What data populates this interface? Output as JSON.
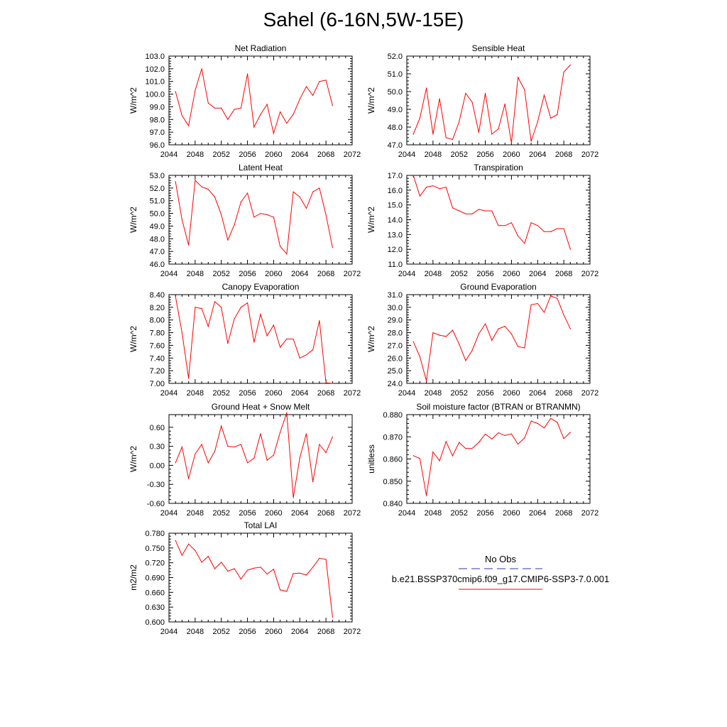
{
  "title": "Sahel (6-16N,5W-15E)",
  "line_color": "#ff0000",
  "legend": {
    "obs_label": "No Obs",
    "obs_color": "#3333aa",
    "case_label": "b.e21.BSSP370cmip6.f09_g17.CMIP6-SSP3-7.0.001",
    "case_color": "#ff0000"
  },
  "chart_data": [
    {
      "type": "line",
      "title": "Net Radiation",
      "ylabel": "W/m^2",
      "xlim": [
        2044,
        2072
      ],
      "ylim": [
        96.0,
        103.0
      ],
      "xticks": [
        "2044",
        "2048",
        "2052",
        "2056",
        "2060",
        "2064",
        "2068",
        "2072"
      ],
      "yticks": [
        "96.0",
        "97.0",
        "98.0",
        "99.0",
        "100.0",
        "101.0",
        "102.0",
        "103.0"
      ],
      "series": [
        {
          "x": [
            2045,
            2046,
            2047,
            2048,
            2049,
            2050,
            2051,
            2052,
            2053,
            2054,
            2055,
            2056,
            2057,
            2058,
            2059,
            2060,
            2061,
            2062,
            2063,
            2064,
            2065,
            2066,
            2067,
            2068,
            2069
          ],
          "values": [
            100.2,
            98.3,
            97.5,
            100.3,
            102.0,
            99.3,
            98.9,
            98.9,
            98.0,
            98.8,
            98.9,
            101.6,
            97.4,
            98.4,
            99.2,
            96.9,
            98.6,
            97.7,
            98.4,
            99.6,
            100.6,
            99.9,
            101.0,
            101.1,
            99.1
          ]
        }
      ]
    },
    {
      "type": "line",
      "title": "Sensible Heat",
      "ylabel": "W/m^2",
      "xlim": [
        2044,
        2072
      ],
      "ylim": [
        47.0,
        52.0
      ],
      "xticks": [
        "2044",
        "2048",
        "2052",
        "2056",
        "2060",
        "2064",
        "2068",
        "2072"
      ],
      "yticks": [
        "47.0",
        "48.0",
        "49.0",
        "50.0",
        "51.0",
        "52.0"
      ],
      "series": [
        {
          "x": [
            2045,
            2046,
            2047,
            2048,
            2049,
            2050,
            2051,
            2052,
            2053,
            2054,
            2055,
            2056,
            2057,
            2058,
            2059,
            2060,
            2061,
            2062,
            2063,
            2064,
            2065,
            2066,
            2067,
            2068,
            2069
          ],
          "values": [
            47.6,
            48.5,
            50.2,
            47.6,
            49.6,
            47.4,
            47.3,
            48.3,
            49.9,
            49.4,
            47.7,
            49.9,
            47.6,
            47.9,
            49.3,
            47.1,
            50.8,
            50.1,
            47.2,
            48.3,
            49.8,
            48.5,
            48.7,
            51.1,
            51.5
          ]
        }
      ]
    },
    {
      "type": "line",
      "title": "Latent Heat",
      "ylabel": "W/m^2",
      "xlim": [
        2044,
        2072
      ],
      "ylim": [
        46.0,
        53.0
      ],
      "xticks": [
        "2044",
        "2048",
        "2052",
        "2056",
        "2060",
        "2064",
        "2068",
        "2072"
      ],
      "yticks": [
        "46.0",
        "47.0",
        "48.0",
        "49.0",
        "50.0",
        "51.0",
        "52.0",
        "53.0"
      ],
      "series": [
        {
          "x": [
            2045,
            2046,
            2047,
            2048,
            2049,
            2050,
            2051,
            2052,
            2053,
            2054,
            2055,
            2056,
            2057,
            2058,
            2059,
            2060,
            2061,
            2062,
            2063,
            2064,
            2065,
            2066,
            2067,
            2068,
            2069
          ],
          "values": [
            52.5,
            49.5,
            47.5,
            52.6,
            52.1,
            51.9,
            51.3,
            49.9,
            47.9,
            49.1,
            50.9,
            51.6,
            49.7,
            50.0,
            49.9,
            49.7,
            47.4,
            46.8,
            51.7,
            51.3,
            50.4,
            51.7,
            52.0,
            49.9,
            47.3
          ]
        }
      ]
    },
    {
      "type": "line",
      "title": "Transpiration",
      "ylabel": "W/m^2",
      "xlim": [
        2044,
        2072
      ],
      "ylim": [
        11.0,
        17.0
      ],
      "xticks": [
        "2044",
        "2048",
        "2052",
        "2056",
        "2060",
        "2064",
        "2068",
        "2072"
      ],
      "yticks": [
        "11.0",
        "12.0",
        "13.0",
        "14.0",
        "15.0",
        "16.0",
        "17.0"
      ],
      "series": [
        {
          "x": [
            2045,
            2046,
            2047,
            2048,
            2049,
            2050,
            2051,
            2052,
            2053,
            2054,
            2055,
            2056,
            2057,
            2058,
            2059,
            2060,
            2061,
            2062,
            2063,
            2064,
            2065,
            2066,
            2067,
            2068,
            2069
          ],
          "values": [
            17.0,
            15.6,
            16.2,
            16.3,
            16.1,
            16.2,
            14.8,
            14.6,
            14.4,
            14.4,
            14.7,
            14.6,
            14.6,
            13.6,
            13.6,
            13.8,
            12.9,
            12.4,
            13.8,
            13.6,
            13.2,
            13.2,
            13.4,
            13.4,
            12.0
          ]
        }
      ]
    },
    {
      "type": "line",
      "title": "Canopy Evaporation",
      "ylabel": "W/m^2",
      "xlim": [
        2044,
        2072
      ],
      "ylim": [
        7.0,
        8.4
      ],
      "xticks": [
        "2044",
        "2048",
        "2052",
        "2056",
        "2060",
        "2064",
        "2068",
        "2072"
      ],
      "yticks": [
        "7.00",
        "7.20",
        "7.40",
        "7.60",
        "7.80",
        "8.00",
        "8.20",
        "8.40"
      ],
      "series": [
        {
          "x": [
            2045,
            2046,
            2047,
            2048,
            2049,
            2050,
            2051,
            2052,
            2053,
            2054,
            2055,
            2056,
            2057,
            2058,
            2059,
            2060,
            2061,
            2062,
            2063,
            2064,
            2065,
            2066,
            2067,
            2068,
            2069
          ],
          "values": [
            8.37,
            7.8,
            7.08,
            8.2,
            8.18,
            7.9,
            8.29,
            8.2,
            7.63,
            8.02,
            8.2,
            8.27,
            7.65,
            8.09,
            7.75,
            7.92,
            7.57,
            7.7,
            7.7,
            7.4,
            7.45,
            7.53,
            7.99,
            7.01,
            7.0
          ]
        }
      ]
    },
    {
      "type": "line",
      "title": "Ground Evaporation",
      "ylabel": "W/m^2",
      "xlim": [
        2044,
        2072
      ],
      "ylim": [
        24.0,
        31.0
      ],
      "xticks": [
        "2044",
        "2048",
        "2052",
        "2056",
        "2060",
        "2064",
        "2068",
        "2072"
      ],
      "yticks": [
        "24.0",
        "25.0",
        "26.0",
        "27.0",
        "28.0",
        "29.0",
        "30.0",
        "31.0"
      ],
      "series": [
        {
          "x": [
            2045,
            2046,
            2047,
            2048,
            2049,
            2050,
            2051,
            2052,
            2053,
            2054,
            2055,
            2056,
            2057,
            2058,
            2059,
            2060,
            2061,
            2062,
            2063,
            2064,
            2065,
            2066,
            2067,
            2068,
            2069
          ],
          "values": [
            27.3,
            26.1,
            24.2,
            28.0,
            27.8,
            27.7,
            28.2,
            27.1,
            25.8,
            26.6,
            27.9,
            28.7,
            27.4,
            28.3,
            28.5,
            27.9,
            26.9,
            26.8,
            30.2,
            30.3,
            29.6,
            30.9,
            30.7,
            29.4,
            28.3
          ]
        }
      ]
    },
    {
      "type": "line",
      "title": "Ground Heat + Snow Melt",
      "ylabel": "W/m^2",
      "xlim": [
        2044,
        2072
      ],
      "ylim": [
        -0.6,
        0.8
      ],
      "xticks": [
        "2044",
        "2048",
        "2052",
        "2056",
        "2060",
        "2064",
        "2068",
        "2072"
      ],
      "yticks": [
        "-0.60",
        "-0.30",
        "0.00",
        "0.30",
        "0.60"
      ],
      "ytick_values": [
        -0.6,
        -0.3,
        0.0,
        0.3,
        0.6
      ],
      "series": [
        {
          "x": [
            2045,
            2046,
            2047,
            2048,
            2049,
            2050,
            2051,
            2052,
            2053,
            2054,
            2055,
            2056,
            2057,
            2058,
            2059,
            2060,
            2061,
            2062,
            2063,
            2064,
            2065,
            2066,
            2067,
            2068,
            2069
          ],
          "values": [
            0.04,
            0.29,
            -0.21,
            0.18,
            0.33,
            0.04,
            0.22,
            0.62,
            0.3,
            0.29,
            0.33,
            0.04,
            0.11,
            0.5,
            0.08,
            0.16,
            0.52,
            0.83,
            -0.51,
            0.12,
            0.5,
            -0.26,
            0.33,
            0.2,
            0.45
          ]
        }
      ]
    },
    {
      "type": "line",
      "title": "Soil moisture factor (BTRAN or BTRANMN)",
      "ylabel": "unitless",
      "xlim": [
        2044,
        2072
      ],
      "ylim": [
        0.84,
        0.88
      ],
      "xticks": [
        "2044",
        "2048",
        "2052",
        "2056",
        "2060",
        "2064",
        "2068",
        "2072"
      ],
      "yticks": [
        "0.840",
        "0.850",
        "0.860",
        "0.870",
        "0.880"
      ],
      "series": [
        {
          "x": [
            2045,
            2046,
            2047,
            2048,
            2049,
            2050,
            2051,
            2052,
            2053,
            2054,
            2055,
            2056,
            2057,
            2058,
            2059,
            2060,
            2061,
            2062,
            2063,
            2064,
            2065,
            2066,
            2067,
            2068,
            2069
          ],
          "values": [
            0.8615,
            0.8602,
            0.8435,
            0.8632,
            0.8592,
            0.8678,
            0.8614,
            0.8675,
            0.8647,
            0.8648,
            0.8675,
            0.8712,
            0.869,
            0.8718,
            0.8706,
            0.8713,
            0.8667,
            0.8695,
            0.8771,
            0.876,
            0.874,
            0.8783,
            0.8765,
            0.8692,
            0.872
          ]
        }
      ]
    },
    {
      "type": "line",
      "title": "Total LAI",
      "ylabel": "m2/m2",
      "xlim": [
        2044,
        2072
      ],
      "ylim": [
        0.6,
        0.78
      ],
      "xticks": [
        "2044",
        "2048",
        "2052",
        "2056",
        "2060",
        "2064",
        "2068",
        "2072"
      ],
      "yticks": [
        "0.600",
        "0.630",
        "0.660",
        "0.690",
        "0.720",
        "0.750",
        "0.780"
      ],
      "series": [
        {
          "x": [
            2045,
            2046,
            2047,
            2048,
            2049,
            2050,
            2051,
            2052,
            2053,
            2054,
            2055,
            2056,
            2057,
            2058,
            2059,
            2060,
            2061,
            2062,
            2063,
            2064,
            2065,
            2066,
            2067,
            2068,
            2069
          ],
          "values": [
            0.765,
            0.735,
            0.758,
            0.745,
            0.721,
            0.733,
            0.708,
            0.721,
            0.703,
            0.708,
            0.687,
            0.705,
            0.709,
            0.711,
            0.697,
            0.707,
            0.665,
            0.662,
            0.698,
            0.699,
            0.695,
            0.711,
            0.729,
            0.727,
            0.61
          ]
        }
      ]
    }
  ]
}
